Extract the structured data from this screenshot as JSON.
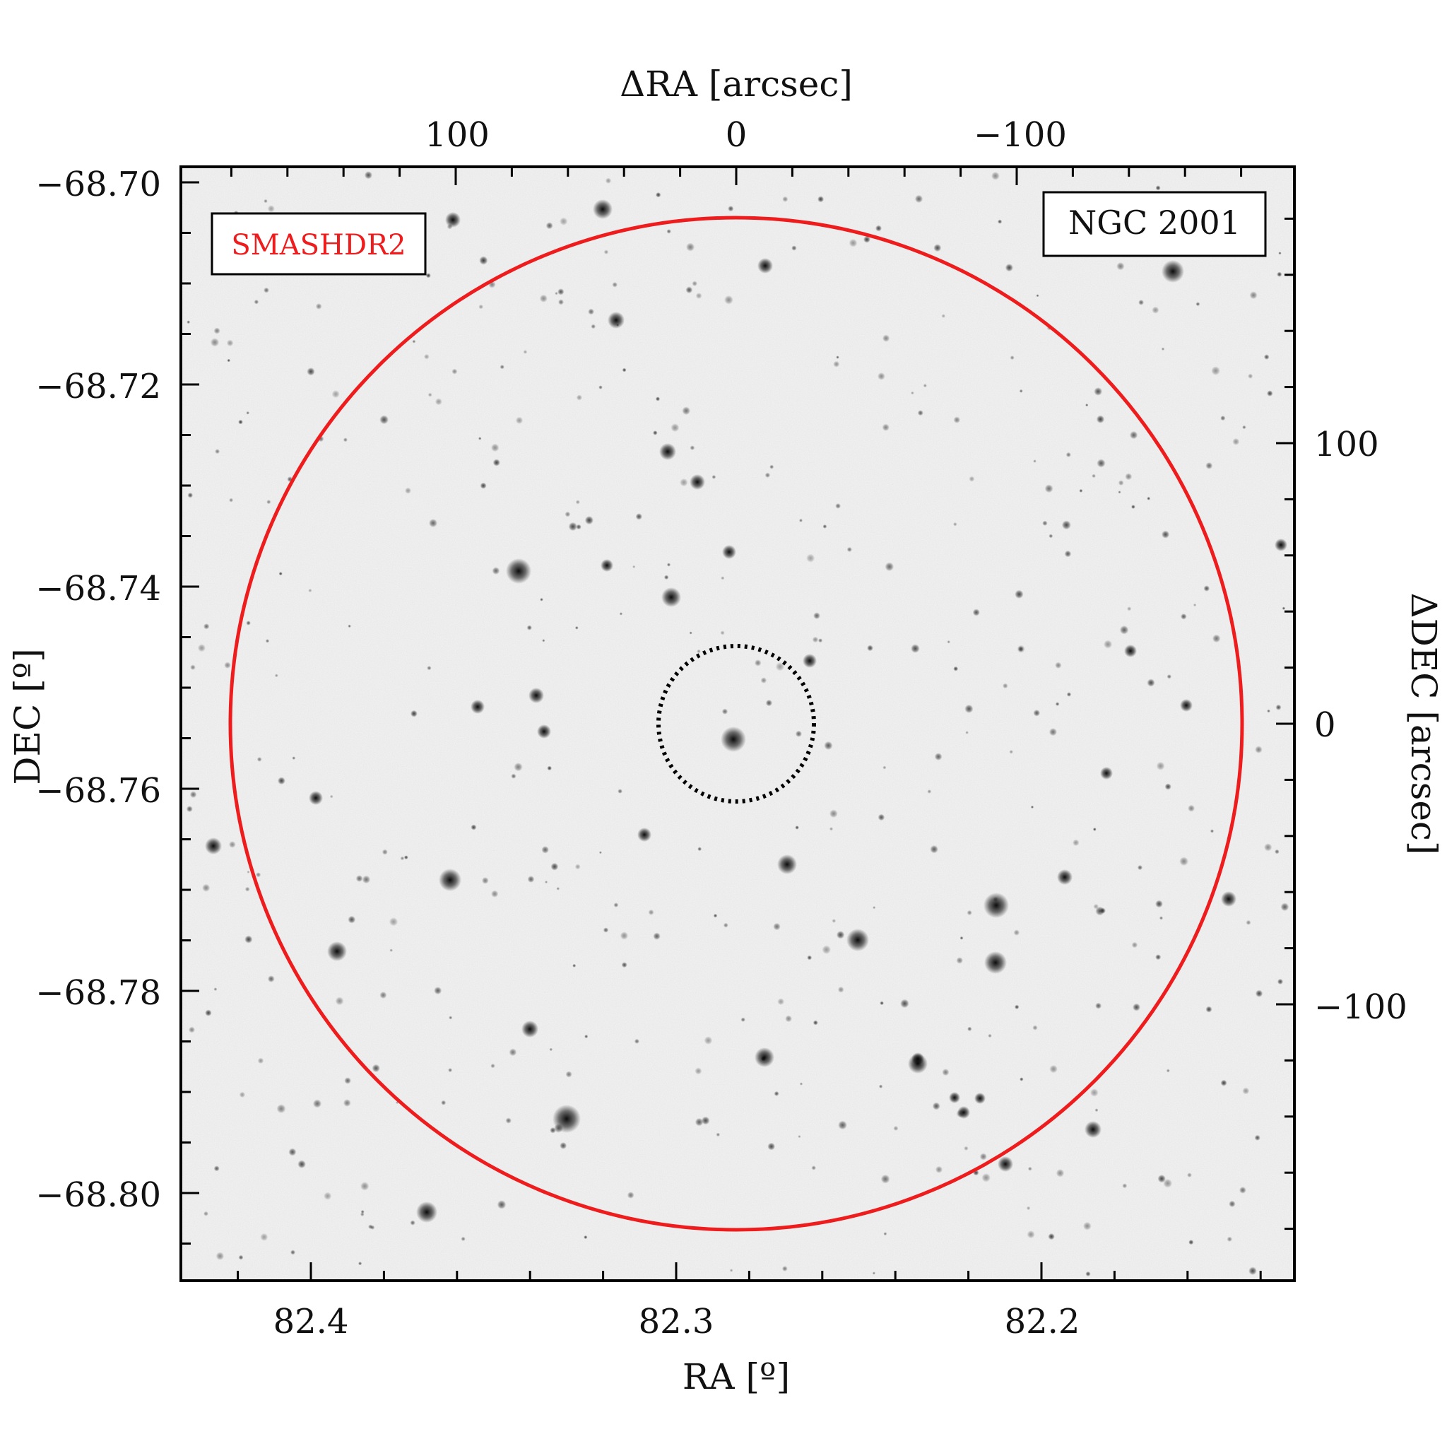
{
  "label_box": {
    "text": "SMASHDR2",
    "color": "#ee1c1c"
  },
  "object_box": {
    "text": "NGC 2001"
  },
  "axes": {
    "bottom": {
      "label": "RA [º]",
      "ticks": [
        "82.4",
        "82.3",
        "82.2"
      ]
    },
    "left": {
      "label": "DEC [º]",
      "ticks": [
        "−68.70",
        "−68.72",
        "−68.74",
        "−68.76",
        "−68.78",
        "−68.80"
      ]
    },
    "top": {
      "label": "ΔRA [arcsec]",
      "ticks": [
        "100",
        "0",
        "−100"
      ]
    },
    "right": {
      "label": "ΔDEC [arcsec]",
      "ticks": [
        "100",
        "0",
        "−100"
      ]
    }
  },
  "colors": {
    "outer_circle": "#ee1c1c",
    "inner_circle": "#000000",
    "sky": "#f4f4f4"
  }
}
